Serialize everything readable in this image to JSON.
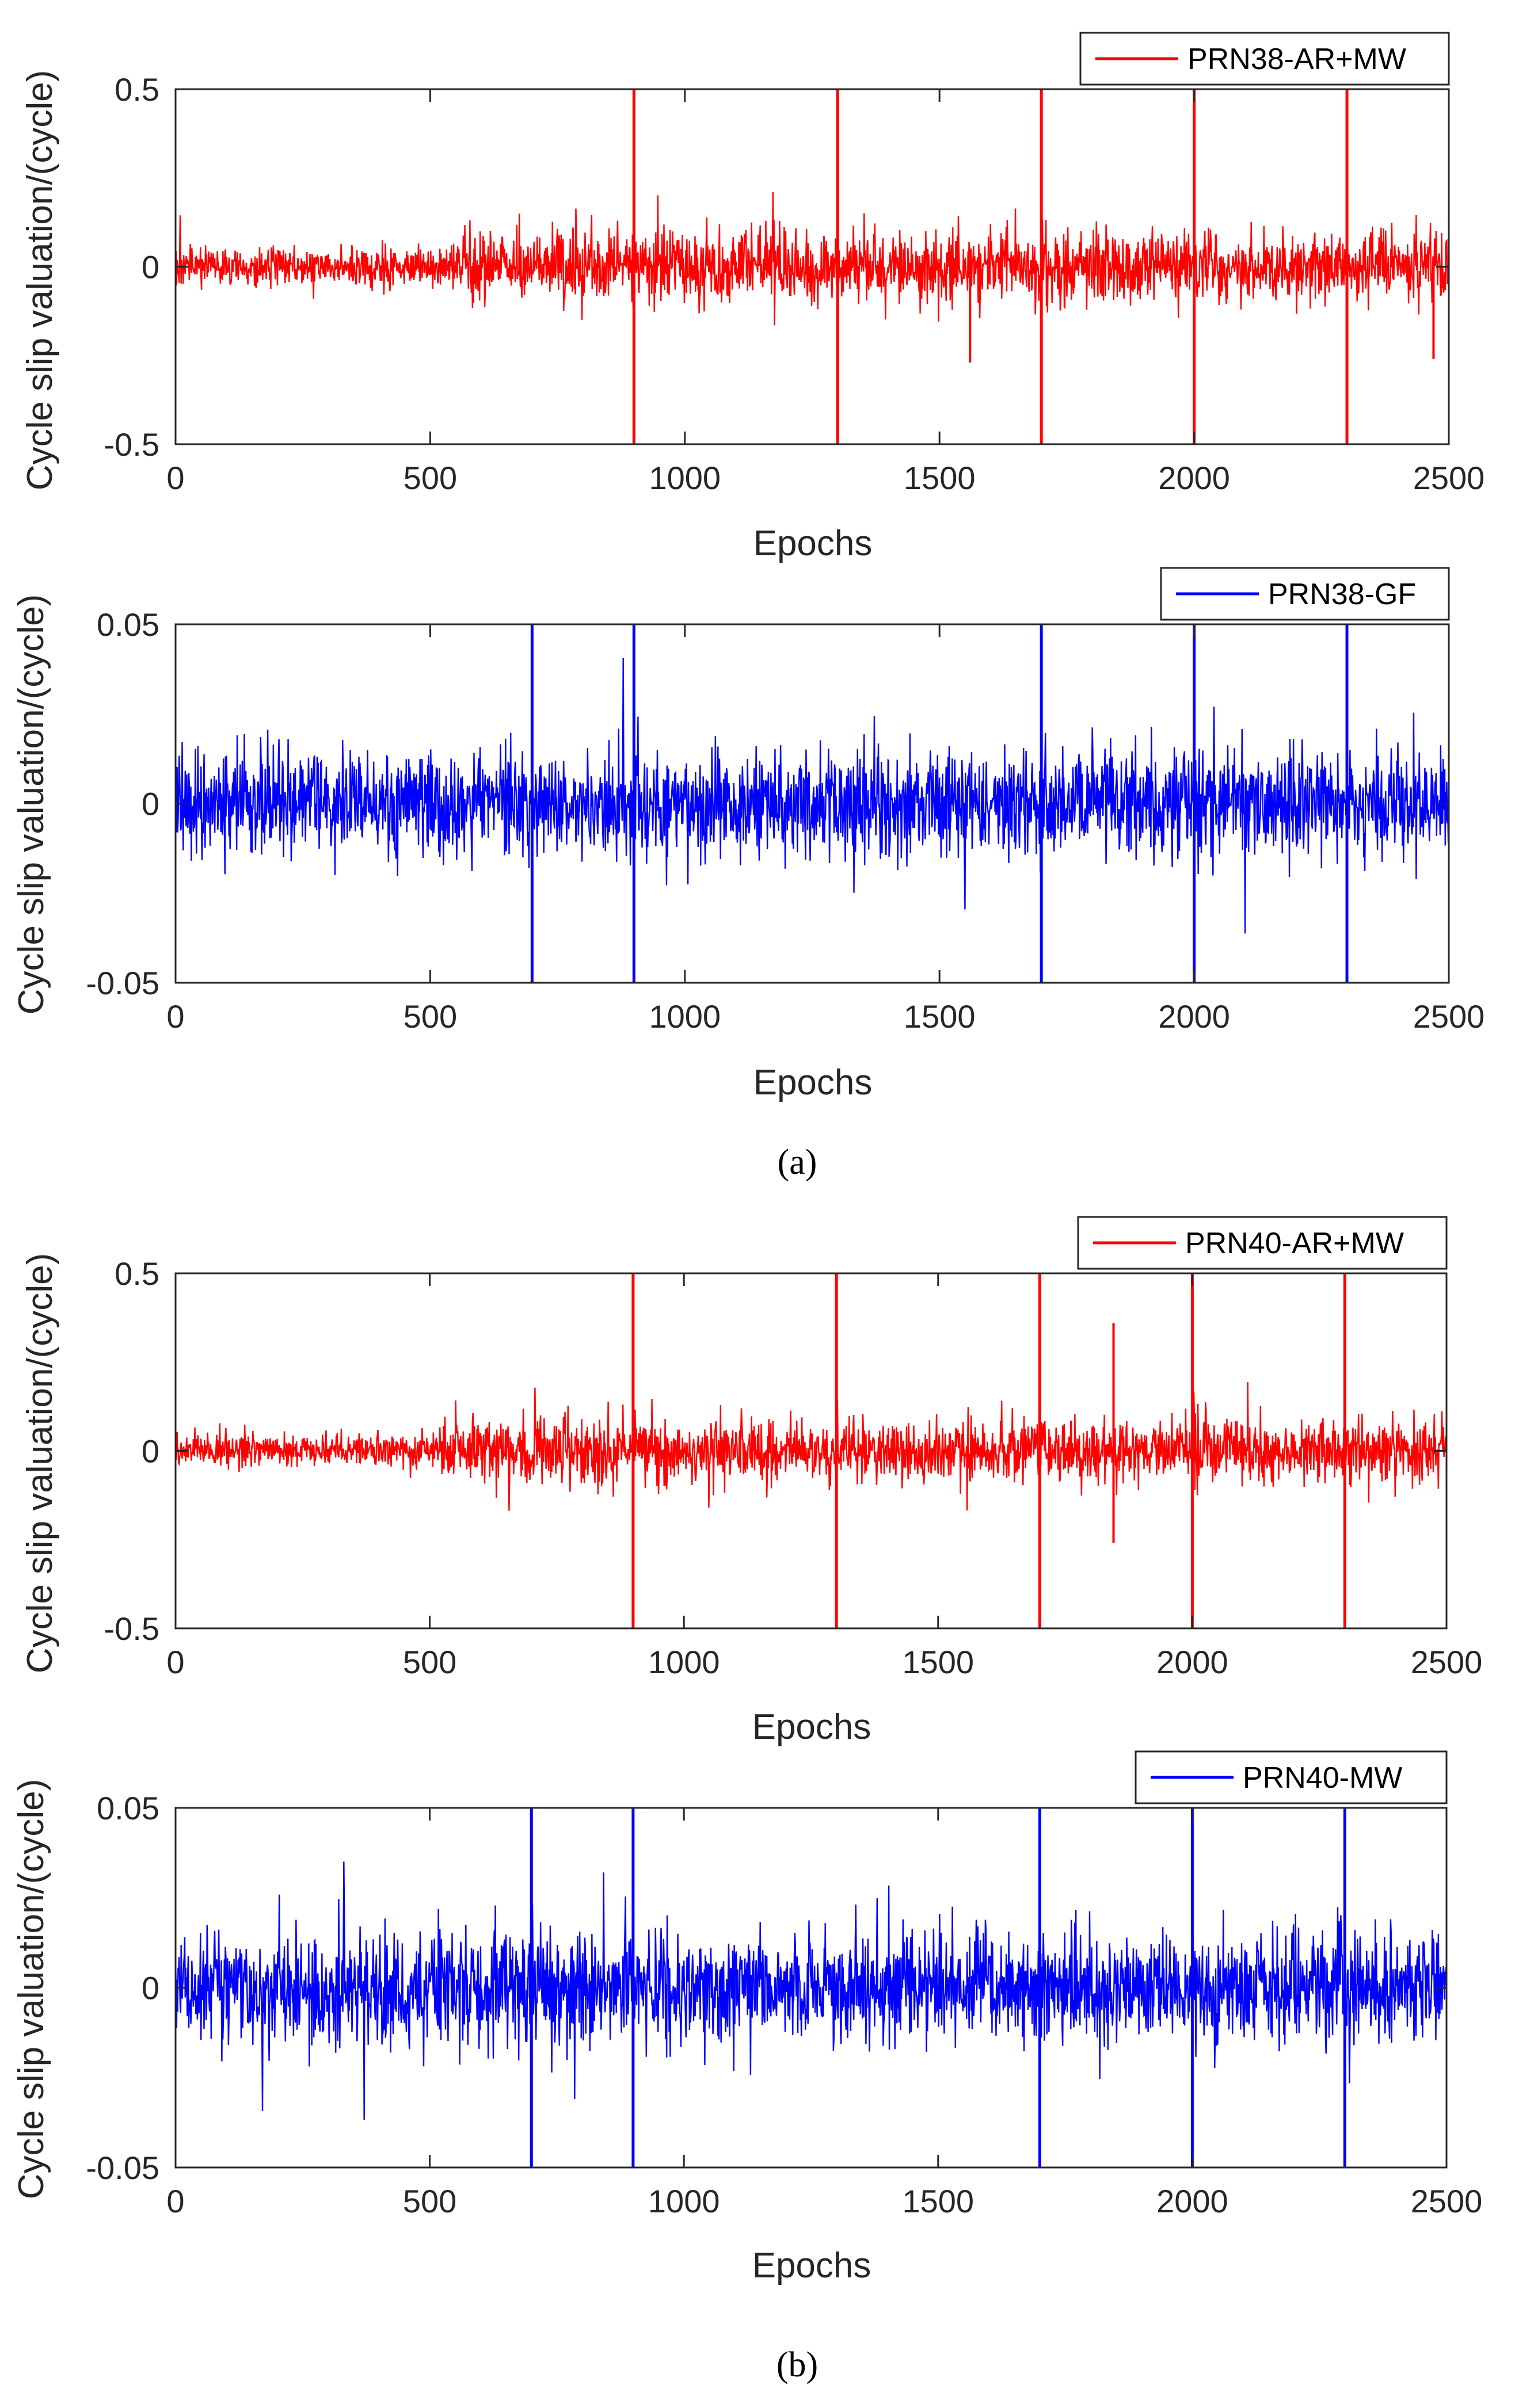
{
  "figure": {
    "caption_a": "(a)",
    "caption_b": "(b)"
  },
  "chart_data": [
    {
      "type": "line",
      "panel": "a-top",
      "color": "#ff0000",
      "legend": "PRN38-AR+MW",
      "legend_position": "top-right",
      "xlabel": "Epochs",
      "ylabel": "Cycle slip valuation/(cycle)",
      "xlim": [
        0,
        2500
      ],
      "ylim": [
        -0.5,
        0.5
      ],
      "xticks": [
        0,
        500,
        1000,
        1500,
        2000,
        2500
      ],
      "yticks": [
        -0.5,
        0,
        0.5
      ],
      "ytick_labels": [
        "-0.5",
        "0",
        "0.5"
      ],
      "n_epochs": 2500,
      "slip_epochs": [
        900,
        1300,
        1700,
        2000,
        2300
      ],
      "noise_segments": [
        {
          "from": 0,
          "to": 550,
          "amplitude": 0.06
        },
        {
          "from": 550,
          "to": 2500,
          "amplitude": 0.11
        }
      ],
      "annotations": [
        {
          "epoch": 1560,
          "value": -0.27
        },
        {
          "epoch": 2470,
          "value": -0.26
        }
      ]
    },
    {
      "type": "line",
      "panel": "a-bottom",
      "color": "#0000ff",
      "legend": "PRN38-GF",
      "legend_position": "top-right",
      "xlabel": "Epochs",
      "ylabel": "Cycle slip valuation/(cycle)",
      "xlim": [
        0,
        2500
      ],
      "ylim": [
        -0.05,
        0.05
      ],
      "xticks": [
        0,
        500,
        1000,
        1500,
        2000,
        2500
      ],
      "yticks": [
        -0.05,
        0,
        0.05
      ],
      "ytick_labels": [
        "-0.05",
        "0",
        "0.05"
      ],
      "n_epochs": 2500,
      "slip_epochs": [
        700,
        900,
        1700,
        2000,
        2300
      ],
      "noise_segments": [
        {
          "from": 0,
          "to": 2500,
          "amplitude": 0.016
        }
      ],
      "annotations": []
    },
    {
      "type": "line",
      "panel": "b-top",
      "color": "#ff0000",
      "legend": "PRN40-AR+MW",
      "legend_position": "top-right",
      "xlabel": "Epochs",
      "ylabel": "Cycle slip valuation/(cycle)",
      "xlim": [
        0,
        2500
      ],
      "ylim": [
        -0.5,
        0.5
      ],
      "xticks": [
        0,
        500,
        1000,
        1500,
        2000,
        2500
      ],
      "yticks": [
        -0.5,
        0,
        0.5
      ],
      "ytick_labels": [
        "-0.5",
        "0",
        "0.5"
      ],
      "n_epochs": 2500,
      "slip_epochs": [
        900,
        1300,
        1700,
        2000,
        2300
      ],
      "noise_segments": [
        {
          "from": 0,
          "to": 520,
          "amplitude": 0.05
        },
        {
          "from": 520,
          "to": 2500,
          "amplitude": 0.1
        }
      ],
      "annotations": [
        {
          "epoch": 1845,
          "value": 0.36
        },
        {
          "epoch": 1845,
          "value": -0.26
        }
      ]
    },
    {
      "type": "line",
      "panel": "b-bottom",
      "color": "#0000ff",
      "legend": "PRN40-MW",
      "legend_position": "top-right",
      "xlabel": "Epochs",
      "ylabel": "Cycle slip valuation/(cycle)",
      "xlim": [
        0,
        2500
      ],
      "ylim": [
        -0.05,
        0.05
      ],
      "xticks": [
        0,
        500,
        1000,
        1500,
        2000,
        2500
      ],
      "yticks": [
        -0.05,
        0,
        0.05
      ],
      "ytick_labels": [
        "-0.05",
        "0",
        "0.05"
      ],
      "n_epochs": 2500,
      "slip_epochs": [
        700,
        900,
        1700,
        2000,
        2300
      ],
      "noise_segments": [
        {
          "from": 0,
          "to": 2500,
          "amplitude": 0.017
        }
      ],
      "annotations": []
    }
  ]
}
